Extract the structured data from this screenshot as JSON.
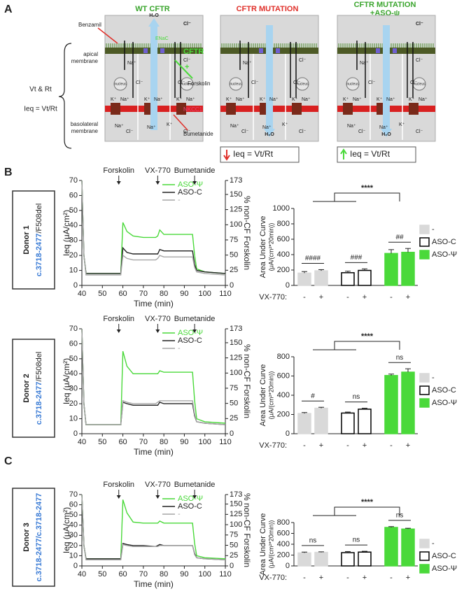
{
  "panel_labels": [
    "A",
    "B",
    "C"
  ],
  "diagram": {
    "titles": [
      "WT CFTR",
      "CFTR MUTATION",
      "CFTR MUTATION",
      "+ASO-ψ"
    ],
    "left_labels": [
      "Vt & Rt",
      "Ieq = Vt/Rt",
      "apical",
      "membrane",
      "basolateral",
      "membrane"
    ],
    "labels": {
      "benzamil": "Benzamil",
      "enac": "ENaC",
      "cftr": "CFTR",
      "forskolin": "Forskolin",
      "nkcc1": "NKCC1",
      "bumetanide": "Bumetanide",
      "nucleus": "nucleus",
      "h2o": "H₂O"
    },
    "ions": {
      "cl": "Cl⁻",
      "na": "Na⁺",
      "k": "K⁺"
    },
    "results": [
      "Ieq = Vt/Rt",
      "Ieq = Vt/Rt"
    ]
  },
  "donors": [
    {
      "name": "Donor 1",
      "allele1": "c.3718-2477",
      "allele2": "/F508del"
    },
    {
      "name": "Donor 2",
      "allele1": "c.3718-2477",
      "allele2": "/F508del"
    },
    {
      "name": "Donor 3",
      "allele1": "c.3718-2477",
      "allele2": "/c.3718-2477"
    }
  ],
  "chart_data": [
    {
      "type": "line",
      "events": [
        {
          "label": "Forskolin",
          "x": 58
        },
        {
          "label": "VX-770",
          "x": 77
        },
        {
          "label": "Bumetanide",
          "x": 95
        }
      ],
      "x": [
        40,
        41,
        42,
        50,
        58,
        59,
        60,
        62,
        65,
        70,
        76,
        77,
        78,
        80,
        85,
        93,
        94,
        95,
        96,
        100,
        110
      ],
      "series": [
        {
          "name": "ASO-Ψ",
          "color": "#4ad93a",
          "values": [
            70,
            20,
            8,
            8,
            8,
            8,
            42,
            36,
            33,
            32,
            32,
            33,
            37,
            34,
            34,
            34,
            34,
            20,
            11,
            9,
            8
          ]
        },
        {
          "name": "ASO-C",
          "color": "#222222",
          "values": [
            70,
            20,
            8,
            8,
            8,
            8,
            25,
            22,
            21,
            21,
            21,
            21,
            24,
            23,
            23,
            23,
            23,
            14,
            10,
            9,
            8
          ]
        },
        {
          "name": "-",
          "color": "#a6a6a6",
          "values": [
            70,
            20,
            7,
            7,
            7,
            7,
            20,
            18,
            17,
            17,
            17,
            18,
            20,
            19,
            19,
            19,
            19,
            12,
            9,
            8,
            7
          ]
        }
      ],
      "xlim": [
        40,
        110
      ],
      "xticks": [
        40,
        50,
        60,
        70,
        80,
        90,
        100,
        110
      ],
      "ylim": [
        0,
        70
      ],
      "yticks": [
        0,
        10,
        20,
        30,
        40,
        50,
        60,
        70
      ],
      "y2lim": [
        0,
        173
      ],
      "y2ticks": [
        0,
        25,
        50,
        75,
        100,
        125,
        150,
        173
      ],
      "xlabel": "Time (min)",
      "ylabel": "Ieq (μA/cm²)",
      "y2label": "% non-CF Forskolin"
    },
    {
      "type": "bar",
      "categories": [
        "-",
        "+"
      ],
      "category_label": "VX-770:",
      "series": [
        {
          "name": "-",
          "color": "#d9d9d9",
          "edgecolor": "#d9d9d9",
          "values": [
            160,
            190
          ],
          "errors": [
            20,
            15
          ]
        },
        {
          "name": "ASO-C",
          "color": "#ffffff",
          "edgecolor": "#000000",
          "values": [
            165,
            195
          ],
          "errors": [
            20,
            20
          ]
        },
        {
          "name": "ASO-Ψ",
          "color": "#4ad93a",
          "edgecolor": "#4ad93a",
          "values": [
            415,
            430
          ],
          "errors": [
            50,
            50
          ]
        }
      ],
      "ylim": [
        0,
        1000
      ],
      "yticks": [
        0,
        200,
        400,
        600,
        800,
        1000
      ],
      "ylabel": [
        "Area Under Curve",
        "(μA/(cm²*20min))"
      ],
      "significance": {
        "overall": "****",
        "pairs": [
          "####",
          "###",
          "##"
        ]
      }
    },
    {
      "type": "line",
      "events": [
        {
          "label": "Forskolin",
          "x": 58
        },
        {
          "label": "VX-770",
          "x": 77
        },
        {
          "label": "Bumetanide",
          "x": 95
        }
      ],
      "x": [
        40,
        41,
        42,
        50,
        58,
        59,
        60,
        62,
        65,
        70,
        76,
        77,
        78,
        80,
        85,
        93,
        94,
        95,
        96,
        100,
        110
      ],
      "series": [
        {
          "name": "ASO-Ψ",
          "color": "#4ad93a",
          "values": [
            70,
            20,
            6,
            6,
            6,
            6,
            55,
            45,
            40,
            40,
            40,
            40,
            42,
            41,
            41,
            41,
            41,
            22,
            10,
            8,
            7
          ]
        },
        {
          "name": "ASO-C",
          "color": "#222222",
          "values": [
            70,
            20,
            6,
            6,
            6,
            6,
            21,
            20,
            19,
            19,
            19,
            19,
            21,
            20,
            20,
            20,
            20,
            12,
            8,
            7,
            6
          ]
        },
        {
          "name": "-",
          "color": "#a6a6a6",
          "values": [
            70,
            20,
            6,
            6,
            6,
            6,
            22,
            21,
            20,
            20,
            20,
            21,
            22,
            22,
            22,
            22,
            22,
            13,
            8,
            7,
            6
          ]
        }
      ],
      "xlim": [
        40,
        110
      ],
      "xticks": [
        40,
        50,
        60,
        70,
        80,
        90,
        100,
        110
      ],
      "ylim": [
        0,
        70
      ],
      "yticks": [
        0,
        10,
        20,
        30,
        40,
        50,
        60,
        70
      ],
      "y2lim": [
        0,
        173
      ],
      "y2ticks": [
        0,
        25,
        50,
        75,
        100,
        125,
        150,
        173
      ],
      "xlabel": "Time (min)",
      "ylabel": "Ieq (μA/cm²)",
      "y2label": "% non-CF Forskolin"
    },
    {
      "type": "bar",
      "categories": [
        "-",
        "+"
      ],
      "category_label": "VX-770:",
      "series": [
        {
          "name": "-",
          "color": "#d9d9d9",
          "edgecolor": "#d9d9d9",
          "values": [
            210,
            265
          ],
          "errors": [
            10,
            10
          ]
        },
        {
          "name": "ASO-C",
          "color": "#ffffff",
          "edgecolor": "#000000",
          "values": [
            215,
            255
          ],
          "errors": [
            10,
            10
          ]
        },
        {
          "name": "ASO-Ψ",
          "color": "#4ad93a",
          "edgecolor": "#4ad93a",
          "values": [
            605,
            640
          ],
          "errors": [
            15,
            35
          ]
        }
      ],
      "ylim": [
        0,
        800
      ],
      "yticks": [
        0,
        200,
        400,
        600,
        800
      ],
      "ylabel": [
        "Area Under Curve",
        "(μA/(cm²*20min))"
      ],
      "significance": {
        "overall": "****",
        "pairs": [
          "#",
          "ns",
          "ns"
        ]
      }
    },
    {
      "type": "line",
      "events": [
        {
          "label": "Forskolin",
          "x": 58
        },
        {
          "label": "VX-770",
          "x": 77
        },
        {
          "label": "Bumetanide",
          "x": 95
        }
      ],
      "x": [
        40,
        41,
        42,
        50,
        58,
        59,
        60,
        62,
        65,
        70,
        76,
        77,
        78,
        80,
        85,
        93,
        94,
        95,
        96,
        100,
        110
      ],
      "series": [
        {
          "name": "ASO-Ψ",
          "color": "#4ad93a",
          "values": [
            70,
            20,
            7,
            7,
            7,
            7,
            65,
            52,
            43,
            42,
            42,
            42,
            44,
            42,
            42,
            42,
            42,
            22,
            10,
            8,
            7
          ]
        },
        {
          "name": "ASO-C",
          "color": "#222222",
          "values": [
            70,
            20,
            7,
            7,
            7,
            7,
            22,
            21,
            20,
            20,
            19,
            20,
            21,
            20,
            20,
            20,
            20,
            12,
            8,
            7,
            6
          ]
        },
        {
          "name": "-",
          "color": "#a6a6a6",
          "values": [
            70,
            20,
            6,
            6,
            6,
            6,
            21,
            20,
            19,
            19,
            19,
            19,
            20,
            20,
            20,
            20,
            20,
            11,
            8,
            7,
            6
          ]
        }
      ],
      "xlim": [
        40,
        110
      ],
      "xticks": [
        40,
        50,
        60,
        70,
        80,
        90,
        100,
        110
      ],
      "ylim": [
        0,
        70
      ],
      "yticks": [
        0,
        10,
        20,
        30,
        40,
        50,
        60,
        70
      ],
      "y2lim": [
        0,
        173
      ],
      "y2ticks": [
        0,
        25,
        50,
        75,
        100,
        125,
        150,
        173
      ],
      "xlabel": "Time (min)",
      "ylabel": "Ieq (μA/cm²)",
      "y2label": "% non-CF Forskolin"
    },
    {
      "type": "bar",
      "categories": [
        "-",
        "+"
      ],
      "category_label": "VX-770:",
      "series": [
        {
          "name": "-",
          "color": "#d9d9d9",
          "edgecolor": "#d9d9d9",
          "values": [
            240,
            250
          ],
          "errors": [
            15,
            10
          ]
        },
        {
          "name": "ASO-C",
          "color": "#ffffff",
          "edgecolor": "#000000",
          "values": [
            245,
            255
          ],
          "errors": [
            20,
            15
          ]
        },
        {
          "name": "ASO-Ψ",
          "color": "#4ad93a",
          "edgecolor": "#4ad93a",
          "values": [
            710,
            680
          ],
          "errors": [
            15,
            15
          ]
        }
      ],
      "ylim": [
        0,
        800
      ],
      "yticks": [
        0,
        200,
        400,
        600,
        800
      ],
      "ylabel": [
        "Area Under Curve",
        "(μA/(cm²*20min))"
      ],
      "significance": {
        "overall": "****",
        "pairs": [
          "ns",
          "ns",
          "ns"
        ]
      }
    }
  ]
}
